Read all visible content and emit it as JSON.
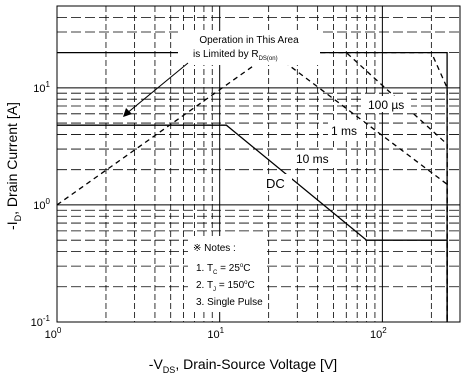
{
  "chart_data": {
    "type": "line",
    "title": "",
    "xlabel": "-V_DS, Drain-Source Voltage [V]",
    "ylabel": "-I_D, Drain Current [A]",
    "x_scale": "log",
    "y_scale": "log",
    "xlim": [
      1,
      300
    ],
    "ylim": [
      0.1,
      50
    ],
    "x_tick_labels": [
      {
        "base": "10",
        "exp": "0",
        "value": 1
      },
      {
        "base": "10",
        "exp": "1",
        "value": 10
      },
      {
        "base": "10",
        "exp": "2",
        "value": 100
      }
    ],
    "y_tick_labels": [
      {
        "base": "10",
        "exp": "-1",
        "value": 0.1
      },
      {
        "base": "10",
        "exp": "0",
        "value": 1
      },
      {
        "base": "10",
        "exp": "1",
        "value": 10
      }
    ],
    "grid": true,
    "series": [
      {
        "name": "DC",
        "style": "solid",
        "x": [
          1,
          11,
          80,
          250,
          250
        ],
        "y": [
          4.8,
          4.8,
          0.5,
          0.5,
          0.1
        ]
      },
      {
        "name": "10 ms",
        "style": "dashed",
        "x": [
          1,
          21,
          250,
          250
        ],
        "y": [
          1.0,
          20,
          1.5,
          0.1
        ]
      },
      {
        "name": "1 ms",
        "style": "dashed",
        "x": [
          22,
          60,
          250,
          250
        ],
        "y": [
          20,
          20,
          3.3,
          0.1
        ]
      },
      {
        "name": "100 µs",
        "style": "dashed",
        "x": [
          60,
          200,
          250,
          250
        ],
        "y": [
          20,
          20,
          10,
          0.1
        ]
      },
      {
        "name": "",
        "style": "solid",
        "x": [
          1,
          250,
          250
        ],
        "y": [
          20,
          20,
          0.1
        ]
      }
    ],
    "annotations": {
      "rds_prefix": "Operation in This Area",
      "rds_line2": "is Limited by R",
      "rds_sub": "DS(on)",
      "label_100us": "100 µs",
      "label_1ms": "1 ms",
      "label_10ms": "10 ms",
      "label_dc": "DC"
    },
    "notes": {
      "title": "※ Notes :",
      "line1_prefix": "1. T",
      "line1_sub": "C",
      "line1_suffix": " = 25",
      "line1_sup": "o",
      "line1_unit": "C",
      "line2_prefix": "2. T",
      "line2_sub": "J",
      "line2_suffix": " = 150",
      "line2_sup": "o",
      "line2_unit": "C",
      "line3": "3. Single Pulse"
    },
    "axis_text": {
      "x_prefix": "-V",
      "x_sub": "DS",
      "x_suffix": ", Drain-Source Voltage [V]",
      "y_prefix": "-I",
      "y_sub": "D",
      "y_suffix": ", Drain Current [A]"
    }
  }
}
